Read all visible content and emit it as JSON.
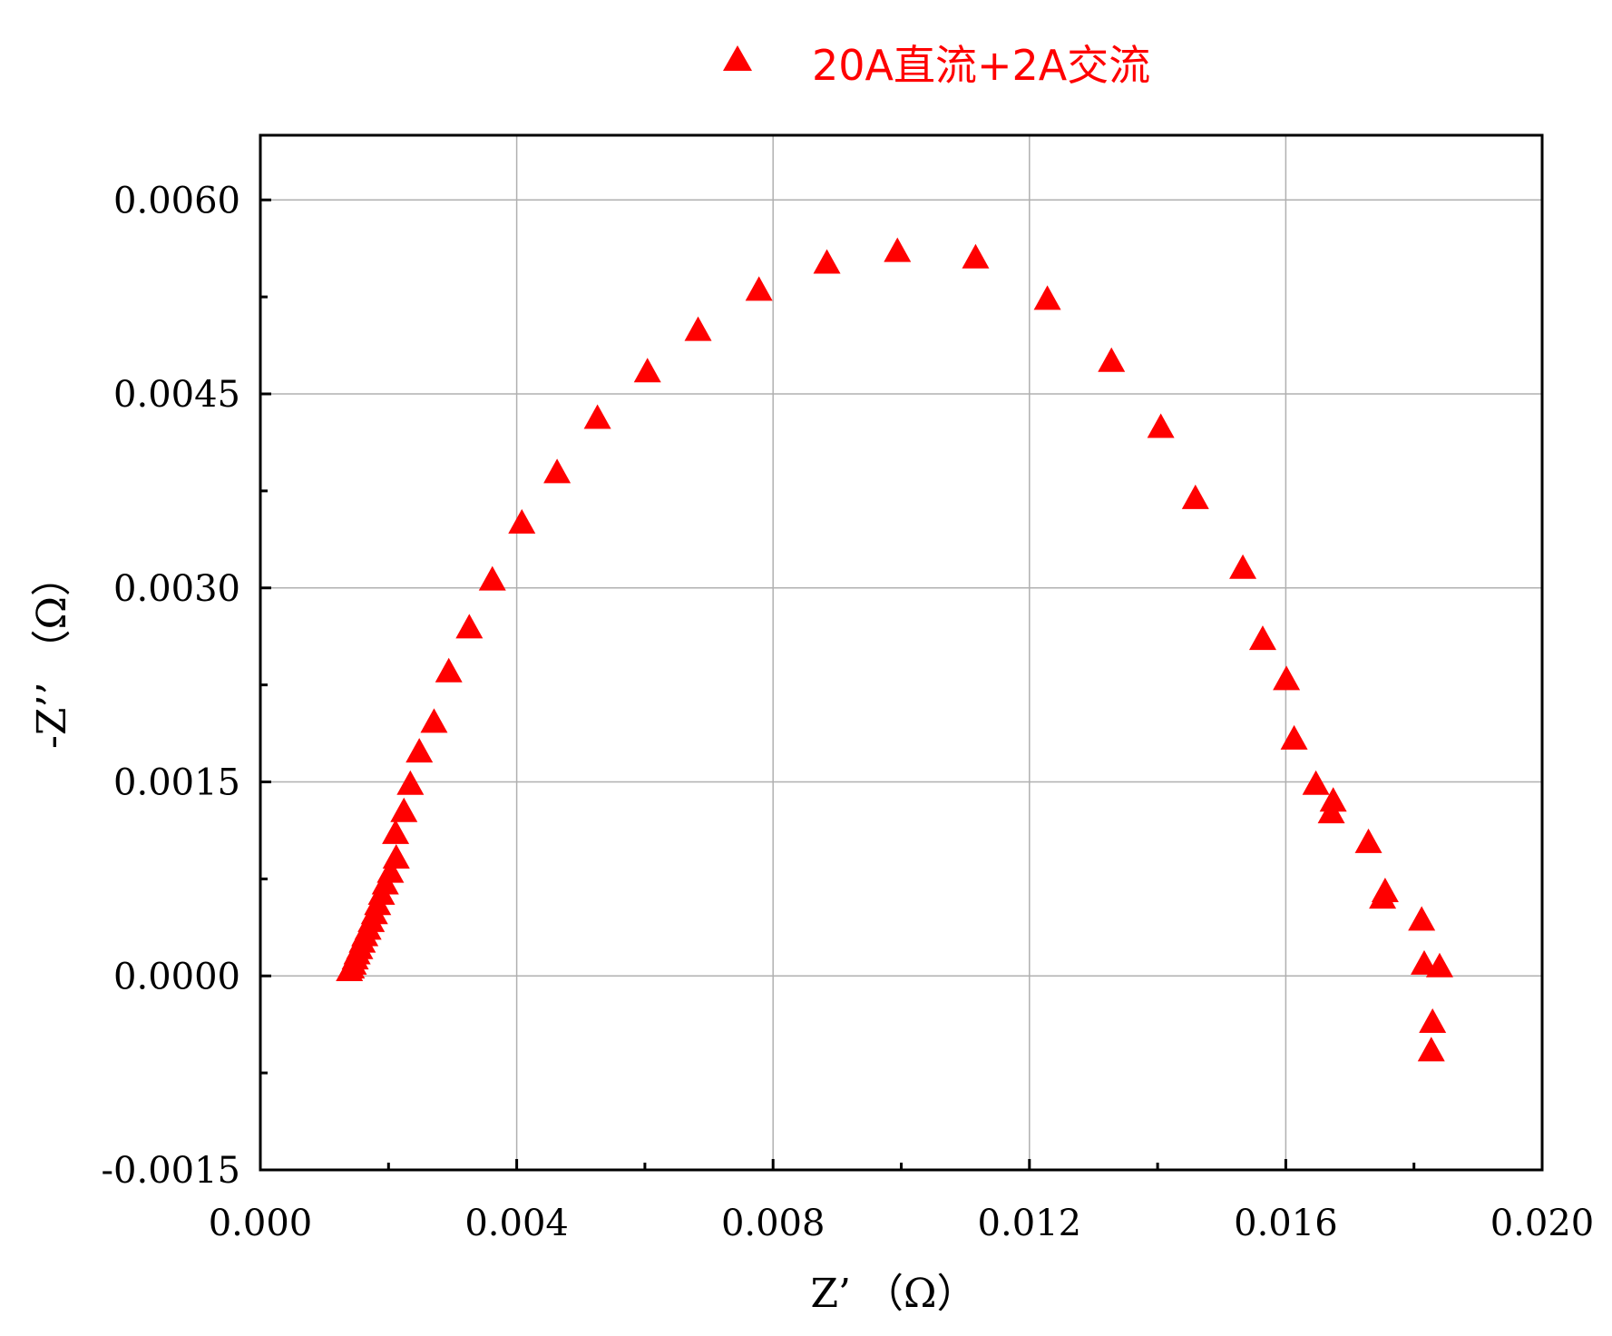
{
  "chart_data": {
    "type": "scatter",
    "title": "",
    "xlabel": "Z’ （Ω）",
    "ylabel": "-Z’’ （Ω）",
    "xlim": [
      0.0,
      0.02
    ],
    "ylim": [
      -0.0015,
      0.0065
    ],
    "x_ticks": [
      0.0,
      0.004,
      0.008,
      0.012,
      0.016,
      0.02
    ],
    "x_tick_labels": [
      "0.000",
      "0.004",
      "0.008",
      "0.012",
      "0.016",
      "0.020"
    ],
    "y_ticks": [
      -0.0015,
      0.0,
      0.0015,
      0.003,
      0.0045,
      0.006
    ],
    "y_tick_labels": [
      "-0.0015",
      "0.0000",
      "0.0015",
      "0.0030",
      "0.0045",
      "0.0060"
    ],
    "grid": true,
    "legend_position": "top-center",
    "series": [
      {
        "name": "20A直流+2A交流",
        "color": "#ff0000",
        "marker": "triangle-up",
        "points": [
          [
            0.00139,
            3e-05
          ],
          [
            0.00142,
            5e-05
          ],
          [
            0.00145,
            8e-05
          ],
          [
            0.00148,
            0.00012
          ],
          [
            0.00151,
            0.00016
          ],
          [
            0.00155,
            0.0002
          ],
          [
            0.00159,
            0.00025
          ],
          [
            0.00163,
            0.0003
          ],
          [
            0.00168,
            0.00035
          ],
          [
            0.00173,
            0.00041
          ],
          [
            0.00178,
            0.00047
          ],
          [
            0.00183,
            0.00054
          ],
          [
            0.00189,
            0.00062
          ],
          [
            0.00195,
            0.0007
          ],
          [
            0.00203,
            0.00079
          ],
          [
            0.00212,
            0.0009
          ],
          [
            0.00211,
            0.00109
          ],
          [
            0.00224,
            0.00126
          ],
          [
            0.00234,
            0.00147
          ],
          [
            0.00248,
            0.00172
          ],
          [
            0.00271,
            0.00195
          ],
          [
            0.00294,
            0.00234
          ],
          [
            0.00326,
            0.00268
          ],
          [
            0.00362,
            0.00305
          ],
          [
            0.00408,
            0.00349
          ],
          [
            0.00463,
            0.00388
          ],
          [
            0.00526,
            0.0043
          ],
          [
            0.00604,
            0.00466
          ],
          [
            0.00683,
            0.00498
          ],
          [
            0.00778,
            0.00529
          ],
          [
            0.00884,
            0.0055
          ],
          [
            0.00994,
            0.00559
          ],
          [
            0.01116,
            0.00554
          ],
          [
            0.01228,
            0.00522
          ],
          [
            0.01328,
            0.00474
          ],
          [
            0.01405,
            0.00423
          ],
          [
            0.01459,
            0.00368
          ],
          [
            0.01533,
            0.00314
          ],
          [
            0.01564,
            0.00259
          ],
          [
            0.01601,
            0.00228
          ],
          [
            0.01613,
            0.00182
          ],
          [
            0.01647,
            0.00147
          ],
          [
            0.01674,
            0.00134
          ],
          [
            0.01671,
            0.00125
          ],
          [
            0.01729,
            0.00102
          ],
          [
            0.01755,
            0.00064
          ],
          [
            0.01751,
            0.00059
          ],
          [
            0.01812,
            0.00042
          ],
          [
            0.01816,
            8e-05
          ],
          [
            0.0184,
            6e-05
          ],
          [
            0.01829,
            -0.00037
          ],
          [
            0.01827,
            -0.00059
          ]
        ]
      }
    ]
  }
}
